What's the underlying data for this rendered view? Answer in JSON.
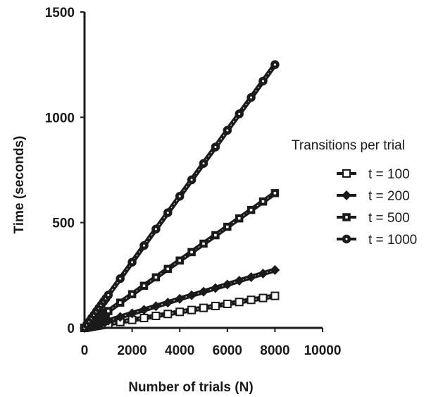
{
  "chart_data": {
    "type": "line",
    "title": "",
    "xlabel": "Number of trials (N)",
    "ylabel": "Time (seconds)",
    "xlim": [
      0,
      10000
    ],
    "ylim": [
      0,
      1500
    ],
    "x_ticks": [
      "0",
      "2000",
      "4000",
      "6000",
      "8000",
      "10000"
    ],
    "y_ticks": [
      "0",
      "500",
      "1000",
      "1500"
    ],
    "grid": false,
    "legend_title": "Transitions per trial",
    "legend_position": "right",
    "series": [
      {
        "name": "t = 100",
        "marker": "square-open",
        "x": [
          0,
          100,
          200,
          300,
          400,
          500,
          600,
          700,
          800,
          900,
          1000,
          1500,
          2000,
          2500,
          3000,
          3500,
          4000,
          4500,
          5000,
          5500,
          6000,
          6500,
          7000,
          7500,
          8000
        ],
        "y": [
          0,
          2,
          4,
          6,
          8,
          10,
          12,
          14,
          16,
          17,
          19,
          28,
          38,
          47,
          57,
          66,
          76,
          85,
          95,
          104,
          114,
          123,
          133,
          142,
          152
        ]
      },
      {
        "name": "t = 200",
        "marker": "diamond-filled",
        "x": [
          0,
          100,
          200,
          300,
          400,
          500,
          600,
          700,
          800,
          900,
          1000,
          1500,
          2000,
          2500,
          3000,
          3500,
          4000,
          4500,
          5000,
          5500,
          6000,
          6500,
          7000,
          7500,
          8000
        ],
        "y": [
          0,
          3,
          7,
          10,
          14,
          17,
          21,
          24,
          28,
          31,
          34,
          52,
          69,
          86,
          103,
          120,
          138,
          155,
          172,
          189,
          206,
          224,
          241,
          258,
          275
        ]
      },
      {
        "name": "t = 500",
        "marker": "square-filled",
        "x": [
          0,
          100,
          200,
          300,
          400,
          500,
          600,
          700,
          800,
          900,
          1000,
          1500,
          2000,
          2500,
          3000,
          3500,
          4000,
          4500,
          5000,
          5500,
          6000,
          6500,
          7000,
          7500,
          8000
        ],
        "y": [
          0,
          8,
          16,
          24,
          32,
          40,
          48,
          56,
          64,
          72,
          80,
          120,
          160,
          200,
          240,
          280,
          320,
          360,
          400,
          440,
          480,
          520,
          560,
          600,
          640
        ]
      },
      {
        "name": "t = 1000",
        "marker": "circle-dot",
        "x": [
          0,
          100,
          200,
          300,
          400,
          500,
          600,
          700,
          800,
          900,
          1000,
          1500,
          2000,
          2500,
          3000,
          3500,
          4000,
          4500,
          5000,
          5500,
          6000,
          6500,
          7000,
          7500,
          8000
        ],
        "y": [
          0,
          16,
          31,
          47,
          62,
          78,
          94,
          109,
          125,
          140,
          156,
          234,
          312,
          391,
          469,
          547,
          625,
          703,
          781,
          859,
          938,
          1016,
          1094,
          1172,
          1250
        ]
      }
    ]
  }
}
